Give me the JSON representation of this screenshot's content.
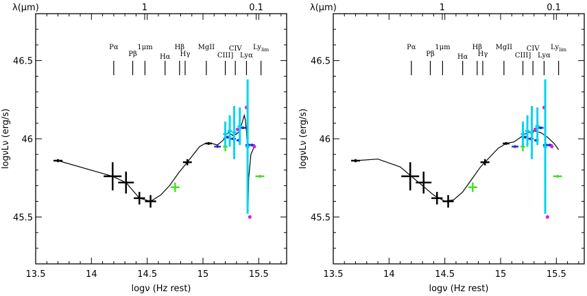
{
  "chart_data": [
    {
      "type": "scatter",
      "panel": "left",
      "xlabel": "logν (Hz rest)",
      "ylabel": "logνLν (erg/s)",
      "top_axis_label": "λ(μm)",
      "top_ticks": [
        {
          "value": 14.4771,
          "label": "1"
        },
        {
          "value": 15.4771,
          "label": "0.1"
        }
      ],
      "xlim": [
        13.5,
        15.75
      ],
      "ylim": [
        45.2,
        46.8
      ],
      "xticks": [
        13.5,
        14,
        14.5,
        15,
        15.5
      ],
      "xtick_labels": [
        "13.5",
        "14",
        "14.5",
        "15",
        "15.5"
      ],
      "yticks": [
        45.5,
        46,
        46.5
      ],
      "ytick_labels": [
        "45.5",
        "46",
        "46.5"
      ],
      "emission_lines": [
        {
          "label": "Pα",
          "x": 14.2
        },
        {
          "label": "Pβ",
          "x": 14.37
        },
        {
          "label": "1μm",
          "x": 14.48
        },
        {
          "label": "Hα",
          "x": 14.66
        },
        {
          "label": "Hβ",
          "x": 14.79
        },
        {
          "label": "Hγ",
          "x": 14.84
        },
        {
          "label": "MgII",
          "x": 15.03
        },
        {
          "label": "CIII]",
          "x": 15.2
        },
        {
          "label": "CIV",
          "x": 15.29
        },
        {
          "label": "Lyα",
          "x": 15.39
        },
        {
          "label": "Ly",
          "sub": "lim",
          "x": 15.52
        }
      ],
      "series": [
        {
          "color": "#000000",
          "points": [
            {
              "x": 13.7,
              "y": 45.86,
              "dx": 0.04,
              "dy": 0.01
            },
            {
              "x": 14.19,
              "y": 45.76,
              "dx": 0.08,
              "dy": 0.09
            },
            {
              "x": 14.31,
              "y": 45.72,
              "dx": 0.07,
              "dy": 0.07
            },
            {
              "x": 14.43,
              "y": 45.62,
              "dx": 0.05,
              "dy": 0.04
            },
            {
              "x": 14.53,
              "y": 45.6,
              "dx": 0.05,
              "dy": 0.04
            },
            {
              "x": 14.86,
              "y": 45.85,
              "dx": 0.04,
              "dy": 0.02
            },
            {
              "x": 15.05,
              "y": 45.97,
              "dx": 0.03,
              "dy": 0.005
            }
          ]
        },
        {
          "color": "#44dd22",
          "points": [
            {
              "x": 14.75,
              "y": 45.69,
              "dx": 0.04,
              "dy": 0.03
            },
            {
              "x": 15.2,
              "y": 45.95,
              "dx": 0.02,
              "dy": 0.03
            },
            {
              "x": 15.51,
              "y": 45.76,
              "dx": 0.04,
              "dy": 0.005
            }
          ]
        },
        {
          "color": "#1f2fcf",
          "points": [
            {
              "x": 15.13,
              "y": 45.95,
              "dx": 0.03,
              "dy": 0.005
            },
            {
              "x": 15.22,
              "y": 46.01,
              "dx": 0.03,
              "dy": 0.005
            },
            {
              "x": 15.27,
              "y": 46.0,
              "dx": 0.025,
              "dy": 0.005
            },
            {
              "x": 15.32,
              "y": 45.99,
              "dx": 0.02,
              "dy": 0.005
            },
            {
              "x": 15.36,
              "y": 46.07,
              "dx": 0.025,
              "dy": 0.005
            },
            {
              "x": 15.41,
              "y": 45.96,
              "dx": 0.03,
              "dy": 0.005
            },
            {
              "x": 15.44,
              "y": 45.96,
              "dx": 0.025,
              "dy": 0.005
            }
          ]
        },
        {
          "color": "#e020e0",
          "points": [
            {
              "x": 15.31,
              "y": 46.06,
              "dx": 0.005,
              "dy": 0.005
            },
            {
              "x": 15.39,
              "y": 46.2,
              "dx": 0.005,
              "dy": 0.005
            },
            {
              "x": 15.46,
              "y": 45.95,
              "dx": 0.005,
              "dy": 0.005
            },
            {
              "x": 15.42,
              "y": 45.5,
              "dx": 0.005,
              "dy": 0.005
            }
          ]
        },
        {
          "color": "#00d4f0",
          "points": [
            {
              "x": 15.2,
              "y": 46.03,
              "dx": 0.02,
              "dy": 0.08
            },
            {
              "x": 15.24,
              "y": 46.05,
              "dx": 0.02,
              "dy": 0.1
            },
            {
              "x": 15.28,
              "y": 46.04,
              "dx": 0.02,
              "dy": 0.17
            },
            {
              "x": 15.33,
              "y": 46.08,
              "dx": 0.02,
              "dy": 0.12
            },
            {
              "x": 15.4,
              "y": 45.95,
              "dx": 0.02,
              "dy": 0.43
            }
          ]
        }
      ],
      "curve": [
        [
          13.7,
          45.86
        ],
        [
          14.19,
          45.76
        ],
        [
          14.31,
          45.72
        ],
        [
          14.43,
          45.62
        ],
        [
          14.53,
          45.6
        ],
        [
          14.62,
          45.64
        ],
        [
          14.7,
          45.7
        ],
        [
          14.78,
          45.78
        ],
        [
          14.86,
          45.85
        ],
        [
          14.97,
          45.95
        ],
        [
          15.02,
          45.97
        ],
        [
          15.08,
          45.97
        ],
        [
          15.13,
          45.96
        ],
        [
          15.18,
          45.99
        ],
        [
          15.21,
          46.03
        ],
        [
          15.23,
          46.04
        ],
        [
          15.25,
          46.03
        ],
        [
          15.27,
          46.02
        ],
        [
          15.3,
          46.03
        ],
        [
          15.33,
          46.05
        ],
        [
          15.35,
          46.1
        ],
        [
          15.37,
          46.15
        ],
        [
          15.38,
          46.12
        ],
        [
          15.39,
          46.05
        ],
        [
          15.4,
          45.9
        ],
        [
          15.405,
          45.58
        ],
        [
          15.41,
          45.75
        ],
        [
          15.43,
          45.9
        ],
        [
          15.46,
          45.95
        ]
      ]
    },
    {
      "type": "scatter",
      "panel": "right",
      "xlabel": "logν (Hz rest)",
      "ylabel": "logνLν (erg/s)",
      "top_axis_label": "λ(μm)",
      "top_ticks": [
        {
          "value": 14.4771,
          "label": "1"
        },
        {
          "value": 15.4771,
          "label": "0.1"
        }
      ],
      "xlim": [
        13.5,
        15.75
      ],
      "ylim": [
        45.2,
        46.8
      ],
      "xticks": [
        13.5,
        14,
        14.5,
        15,
        15.5
      ],
      "xtick_labels": [
        "13.5",
        "14",
        "14.5",
        "15",
        "15.5"
      ],
      "yticks": [
        45.5,
        46,
        46.5
      ],
      "ytick_labels": [
        "45.5",
        "46",
        "46.5"
      ],
      "emission_lines": [
        {
          "label": "Pα",
          "x": 14.2
        },
        {
          "label": "Pβ",
          "x": 14.37
        },
        {
          "label": "1μm",
          "x": 14.48
        },
        {
          "label": "Hα",
          "x": 14.66
        },
        {
          "label": "Hβ",
          "x": 14.79
        },
        {
          "label": "Hγ",
          "x": 14.84
        },
        {
          "label": "MgII",
          "x": 15.03
        },
        {
          "label": "CIII]",
          "x": 15.2
        },
        {
          "label": "CIV",
          "x": 15.29
        },
        {
          "label": "Lyα",
          "x": 15.39
        },
        {
          "label": "Ly",
          "sub": "lim",
          "x": 15.52
        }
      ],
      "series": [
        {
          "color": "#000000",
          "points": [
            {
              "x": 13.7,
              "y": 45.86,
              "dx": 0.04,
              "dy": 0.01
            },
            {
              "x": 14.19,
              "y": 45.76,
              "dx": 0.08,
              "dy": 0.09
            },
            {
              "x": 14.31,
              "y": 45.72,
              "dx": 0.07,
              "dy": 0.07
            },
            {
              "x": 14.43,
              "y": 45.62,
              "dx": 0.05,
              "dy": 0.04
            },
            {
              "x": 14.53,
              "y": 45.6,
              "dx": 0.05,
              "dy": 0.04
            },
            {
              "x": 14.86,
              "y": 45.85,
              "dx": 0.04,
              "dy": 0.02
            },
            {
              "x": 15.05,
              "y": 45.97,
              "dx": 0.03,
              "dy": 0.005
            }
          ]
        },
        {
          "color": "#44dd22",
          "points": [
            {
              "x": 14.75,
              "y": 45.69,
              "dx": 0.04,
              "dy": 0.03
            },
            {
              "x": 15.2,
              "y": 45.95,
              "dx": 0.02,
              "dy": 0.03
            },
            {
              "x": 15.51,
              "y": 45.76,
              "dx": 0.04,
              "dy": 0.005
            }
          ]
        },
        {
          "color": "#1f2fcf",
          "points": [
            {
              "x": 15.13,
              "y": 45.95,
              "dx": 0.03,
              "dy": 0.005
            },
            {
              "x": 15.22,
              "y": 46.01,
              "dx": 0.03,
              "dy": 0.005
            },
            {
              "x": 15.27,
              "y": 46.0,
              "dx": 0.025,
              "dy": 0.005
            },
            {
              "x": 15.32,
              "y": 45.99,
              "dx": 0.02,
              "dy": 0.005
            },
            {
              "x": 15.36,
              "y": 46.07,
              "dx": 0.025,
              "dy": 0.005
            },
            {
              "x": 15.41,
              "y": 45.96,
              "dx": 0.03,
              "dy": 0.005
            },
            {
              "x": 15.44,
              "y": 45.96,
              "dx": 0.025,
              "dy": 0.005
            }
          ]
        },
        {
          "color": "#e020e0",
          "points": [
            {
              "x": 15.31,
              "y": 46.06,
              "dx": 0.005,
              "dy": 0.005
            },
            {
              "x": 15.39,
              "y": 46.2,
              "dx": 0.005,
              "dy": 0.005
            },
            {
              "x": 15.46,
              "y": 45.95,
              "dx": 0.005,
              "dy": 0.005
            },
            {
              "x": 15.42,
              "y": 45.5,
              "dx": 0.005,
              "dy": 0.005
            }
          ]
        },
        {
          "color": "#00d4f0",
          "points": [
            {
              "x": 15.2,
              "y": 46.03,
              "dx": 0.02,
              "dy": 0.08
            },
            {
              "x": 15.24,
              "y": 46.05,
              "dx": 0.02,
              "dy": 0.1
            },
            {
              "x": 15.28,
              "y": 46.04,
              "dx": 0.02,
              "dy": 0.17
            },
            {
              "x": 15.33,
              "y": 46.08,
              "dx": 0.02,
              "dy": 0.12
            },
            {
              "x": 15.4,
              "y": 45.95,
              "dx": 0.02,
              "dy": 0.43
            }
          ]
        }
      ],
      "curve": [
        [
          13.7,
          45.86
        ],
        [
          13.9,
          45.87
        ],
        [
          14.1,
          45.82
        ],
        [
          14.2,
          45.76
        ],
        [
          14.3,
          45.7
        ],
        [
          14.4,
          45.64
        ],
        [
          14.5,
          45.6
        ],
        [
          14.58,
          45.61
        ],
        [
          14.66,
          45.66
        ],
        [
          14.74,
          45.74
        ],
        [
          14.82,
          45.82
        ],
        [
          14.9,
          45.88
        ],
        [
          14.98,
          45.94
        ],
        [
          15.05,
          45.97
        ],
        [
          15.12,
          45.98
        ],
        [
          15.18,
          46.01
        ],
        [
          15.24,
          46.04
        ],
        [
          15.3,
          46.05
        ],
        [
          15.36,
          46.04
        ],
        [
          15.42,
          46.01
        ],
        [
          15.48,
          45.97
        ],
        [
          15.52,
          45.93
        ]
      ]
    }
  ]
}
